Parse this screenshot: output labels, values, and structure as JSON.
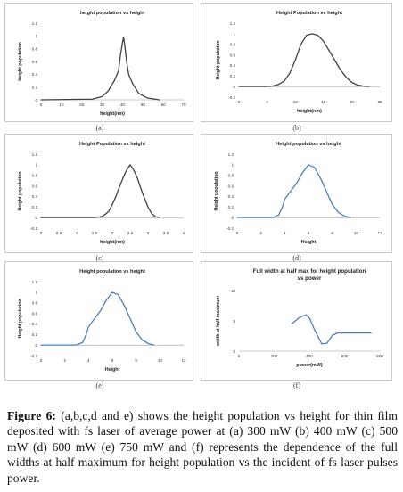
{
  "caption": {
    "label": "Figure 6:",
    "text": " (a,b,c,d and e) shows the height population vs height for thin film deposited with fs laser of average power at (a) 300 mW (b) 400 mW (c) 500 mW (d) 600 mW (e) 750 mW and (f) represents the dependence of the full widths at half maximum for height population vs the incident of fs laser pulses power."
  },
  "chart_data": [
    {
      "panel_label": "(a)",
      "type": "line",
      "title": "height population vs height",
      "xlabel": "height(nm)",
      "ylabel": "height population",
      "xlim": [
        0,
        70
      ],
      "ylim": [
        0,
        1.2
      ],
      "xticks": [
        "0",
        "10",
        "20",
        "30",
        "40",
        "50",
        "60",
        "70"
      ],
      "yticks": [
        "0",
        "0.2",
        "0.4",
        "0.6",
        "0.8",
        "1",
        "1.2"
      ],
      "color": "#404040",
      "series": [
        {
          "x": [
            0,
            25,
            30,
            33,
            36,
            38,
            39,
            40,
            40.5,
            41,
            42,
            43,
            45,
            48,
            52,
            56,
            58
          ],
          "values": [
            0,
            0.01,
            0.05,
            0.14,
            0.3,
            0.45,
            0.7,
            0.9,
            0.98,
            0.88,
            0.6,
            0.4,
            0.25,
            0.1,
            0.03,
            0.01,
            0
          ]
        }
      ]
    },
    {
      "panel_label": "(b)",
      "type": "line",
      "title": "Height Population vs height",
      "xlabel": "height(nm)",
      "ylabel": "Height population",
      "xlim": [
        0,
        25
      ],
      "ylim": [
        -0.2,
        1.2
      ],
      "xticks": [
        "0",
        "5",
        "10",
        "15",
        "20",
        "25"
      ],
      "yticks": [
        "-0.2",
        "0",
        "0.2",
        "0.4",
        "0.6",
        "0.8",
        "1",
        "1.2"
      ],
      "color": "#404040",
      "series": [
        {
          "x": [
            0,
            5,
            6,
            7,
            8,
            9,
            10,
            11,
            12,
            13,
            14,
            15,
            16,
            17,
            18,
            19,
            20,
            21,
            22,
            23
          ],
          "values": [
            0,
            0,
            0.01,
            0.04,
            0.1,
            0.25,
            0.5,
            0.8,
            0.97,
            1.0,
            0.97,
            0.86,
            0.68,
            0.5,
            0.32,
            0.18,
            0.08,
            0.03,
            0.01,
            0
          ]
        }
      ]
    },
    {
      "panel_label": "(c)",
      "type": "line",
      "title": "Height Population vs height",
      "xlabel": "height(nm)",
      "ylabel": "Height population",
      "xlim": [
        0,
        4
      ],
      "ylim": [
        -0.2,
        1.2
      ],
      "xticks": [
        "0",
        "0.5",
        "1",
        "1.5",
        "2",
        "2.5",
        "3",
        "3.5",
        "4"
      ],
      "yticks": [
        "-0.2",
        "0",
        "0.2",
        "0.4",
        "0.6",
        "0.8",
        "1",
        "1.2"
      ],
      "color": "#404040",
      "series": [
        {
          "x": [
            0,
            1.5,
            1.7,
            1.8,
            1.9,
            2.0,
            2.1,
            2.2,
            2.3,
            2.4,
            2.5,
            2.6,
            2.7,
            2.8,
            2.9,
            3.0,
            3.1,
            3.2,
            3.3
          ],
          "values": [
            0,
            0,
            0.02,
            0.06,
            0.12,
            0.25,
            0.4,
            0.58,
            0.75,
            0.9,
            1.0,
            0.9,
            0.75,
            0.55,
            0.37,
            0.2,
            0.08,
            0.02,
            0
          ]
        }
      ]
    },
    {
      "panel_label": "(d)",
      "type": "line",
      "title": "Height population vs height",
      "xlabel": "Height",
      "ylabel": "Height population",
      "xlim": [
        0,
        12
      ],
      "ylim": [
        -0.2,
        1.2
      ],
      "xticks": [
        "0",
        "2",
        "4",
        "6",
        "8",
        "10",
        "12"
      ],
      "yticks": [
        "-0.2",
        "0",
        "0.2",
        "0.4",
        "0.6",
        "0.8",
        "1",
        "1.2"
      ],
      "color": "#4a7fc0",
      "series": [
        {
          "x": [
            0,
            3,
            3.5,
            3.8,
            4,
            4.5,
            5,
            5.5,
            6,
            6.5,
            7,
            7.5,
            8,
            8.5,
            9,
            9.5
          ],
          "values": [
            0,
            0,
            0.05,
            0.2,
            0.35,
            0.5,
            0.65,
            0.85,
            1.0,
            0.95,
            0.75,
            0.5,
            0.25,
            0.1,
            0.03,
            0
          ]
        }
      ]
    },
    {
      "panel_label": "(e)",
      "type": "line",
      "title": "Height population vs height",
      "xlabel": "Height",
      "ylabel": "Height population",
      "xlim": [
        0,
        12
      ],
      "ylim": [
        -0.2,
        1.2
      ],
      "xticks": [
        "0",
        "2",
        "4",
        "6",
        "8",
        "10",
        "12"
      ],
      "yticks": [
        "-0.2",
        "0",
        "0.2",
        "0.4",
        "0.6",
        "0.8",
        "1",
        "1.2"
      ],
      "color": "#4a7fc0",
      "series": [
        {
          "x": [
            0,
            3,
            3.5,
            3.8,
            4,
            4.5,
            5,
            5.5,
            6,
            6.5,
            7,
            7.5,
            8,
            8.5,
            9,
            9.5
          ],
          "values": [
            0,
            0,
            0.05,
            0.2,
            0.35,
            0.5,
            0.65,
            0.85,
            1.0,
            0.95,
            0.75,
            0.5,
            0.25,
            0.1,
            0.03,
            0
          ]
        }
      ]
    },
    {
      "panel_label": "(f)",
      "type": "line",
      "title": "Full width at half max for height population vs power",
      "xlabel": "power(mW)",
      "ylabel": "width at half maximum",
      "xlim": [
        0,
        800
      ],
      "ylim": [
        0,
        10
      ],
      "xticks": [
        "0",
        "200",
        "400",
        "600",
        "800"
      ],
      "yticks": [
        "0",
        "5",
        "10"
      ],
      "color": "#4a7fc0",
      "series": [
        {
          "x": [
            300,
            340,
            380,
            400,
            430,
            470,
            500,
            530,
            560,
            600,
            680,
            750
          ],
          "values": [
            4.5,
            5.5,
            6.0,
            5.5,
            3.5,
            1.2,
            1.3,
            2.6,
            3.0,
            3.0,
            3.0,
            3.0
          ]
        }
      ]
    }
  ]
}
